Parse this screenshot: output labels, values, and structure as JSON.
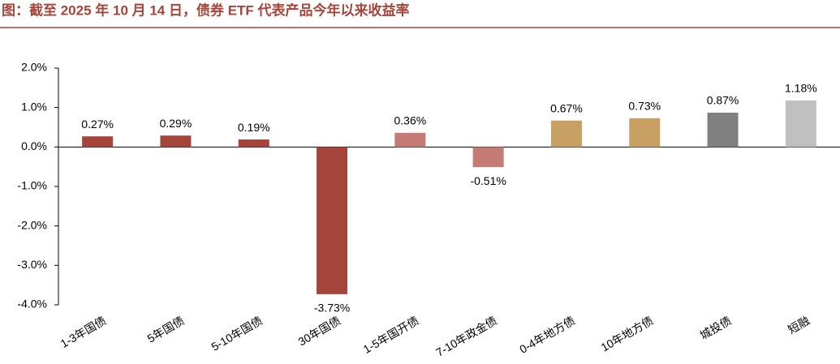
{
  "chart_data": {
    "type": "bar",
    "title": "图：截至 2025 年 10 月 14 日，债券 ETF 代表产品今年以来收益率",
    "categories": [
      "1-3年国债",
      "5年国债",
      "5-10年国债",
      "30年国债",
      "1-5年国开债",
      "7-10年政金债",
      "0-4年地方债",
      "10年地方债",
      "城投债",
      "短融"
    ],
    "values": [
      0.27,
      0.29,
      0.19,
      -3.73,
      0.36,
      -0.51,
      0.67,
      0.73,
      0.87,
      1.18
    ],
    "value_labels": [
      "0.27%",
      "0.29%",
      "0.19%",
      "-3.73%",
      "0.36%",
      "-0.51%",
      "0.67%",
      "0.73%",
      "0.87%",
      "1.18%"
    ],
    "colors": [
      "#a5443a",
      "#a5443a",
      "#a5443a",
      "#a5443a",
      "#c47b75",
      "#c47b75",
      "#c9a063",
      "#c9a063",
      "#808080",
      "#c0c0c0"
    ],
    "ylim": [
      -4,
      2
    ],
    "yticks": [
      {
        "value": -4,
        "label": "-4.0%"
      },
      {
        "value": -3,
        "label": "-3.0%"
      },
      {
        "value": -2,
        "label": "-2.0%"
      },
      {
        "value": -1,
        "label": "-1.0%"
      },
      {
        "value": 0,
        "label": "0.0%"
      },
      {
        "value": 1,
        "label": "1.0%"
      },
      {
        "value": 2,
        "label": "2.0%"
      }
    ],
    "grid": false
  }
}
